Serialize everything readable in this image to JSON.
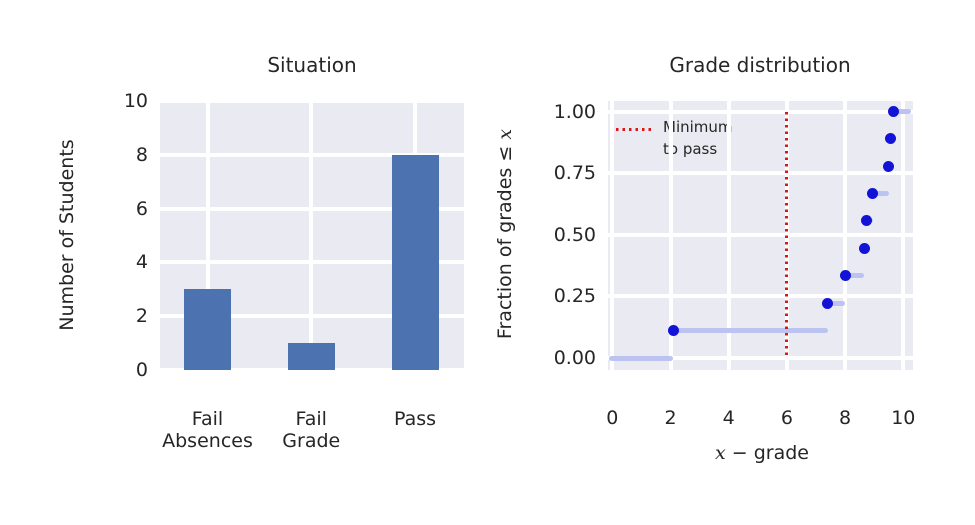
{
  "colors": {
    "figure_background": "#FFFFFF",
    "axes_background": "#EAEAF2",
    "grid": "#FFFFFF",
    "text": "#262626"
  },
  "chart_data": [
    {
      "type": "bar",
      "title": "Situation",
      "ylabel": "Number of Students",
      "categories": [
        [
          "Fail",
          "Absences"
        ],
        [
          "Fail",
          "Grade"
        ],
        [
          "Pass"
        ]
      ],
      "values": [
        3,
        1,
        8
      ],
      "ylim": [
        0,
        10
      ],
      "yticks": [
        0,
        2,
        4,
        6,
        8,
        10
      ],
      "grid": "on",
      "bar_color": "#4C72B0"
    },
    {
      "type": "scatter",
      "subtype": "ecdf-steps",
      "title": "Grade distribution",
      "xlabel_var": "x",
      "xlabel_rest": " − grade",
      "ylabel_text": "Fraction of grades ≤ ",
      "ylabel_var": "x",
      "x": [
        2.1,
        7.4,
        8.0,
        8.65,
        8.75,
        8.95,
        9.5,
        9.55,
        9.65
      ],
      "y": [
        0.111,
        0.222,
        0.333,
        0.444,
        0.556,
        0.667,
        0.778,
        0.889,
        1.0
      ],
      "xlim": [
        -0.15,
        10.3
      ],
      "ylim": [
        -0.05,
        1.05
      ],
      "xticks": [
        0,
        2,
        4,
        6,
        8,
        10
      ],
      "yticks": [
        0,
        0.25,
        0.5,
        0.75,
        1.0
      ],
      "ytick_labels": [
        "0.00",
        "0.25",
        "0.50",
        "0.75",
        "1.00"
      ],
      "grid": "on",
      "point_color": "#1313D7",
      "step_color": "#BDC3F0",
      "vline": {
        "x": 6,
        "color": "#DF1515",
        "style": "dotted",
        "label_lines": [
          "Minimum",
          "to pass"
        ]
      },
      "legend_position": "upper left"
    }
  ]
}
